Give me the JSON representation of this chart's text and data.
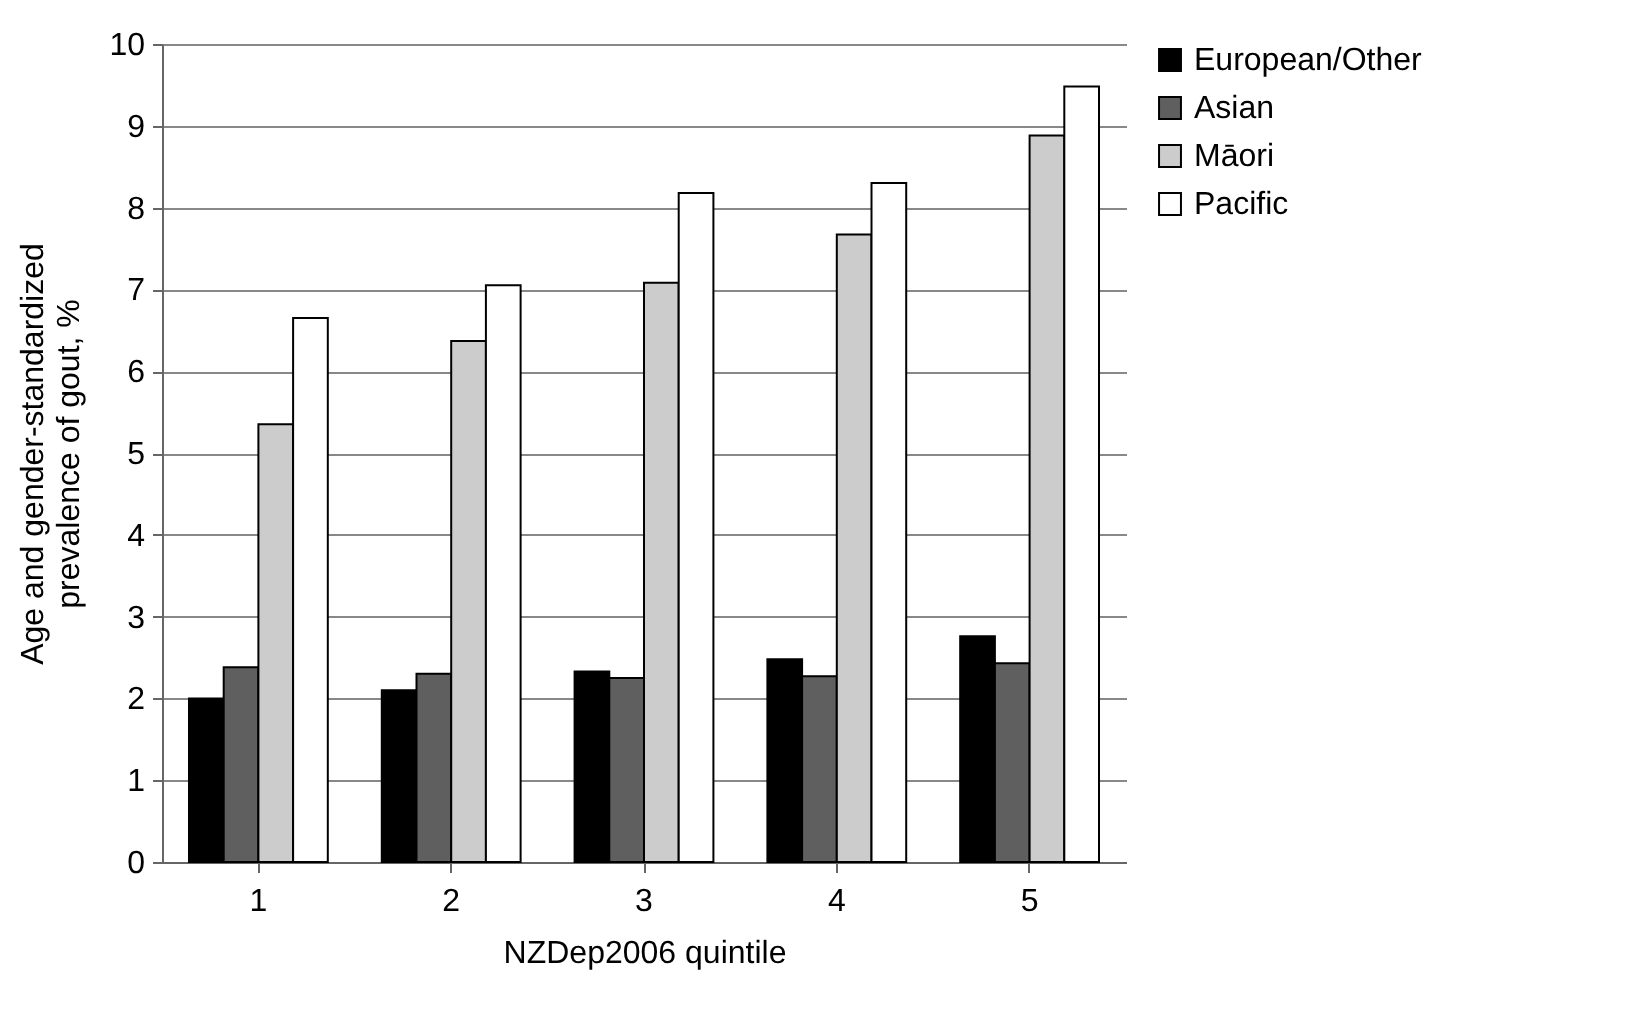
{
  "chart_data": {
    "type": "bar",
    "xlabel": "NZDep2006 quintile",
    "ylabel": "Age and gender-standardized prevalence of gout, %",
    "categories": [
      "1",
      "2",
      "3",
      "4",
      "5"
    ],
    "series": [
      {
        "name": "European/Other",
        "color": "#000000",
        "values": [
          2.0,
          2.1,
          2.33,
          2.48,
          2.76
        ]
      },
      {
        "name": "Asian",
        "color": "#5f5f5f",
        "values": [
          2.38,
          2.3,
          2.25,
          2.27,
          2.43
        ]
      },
      {
        "name": "Māori",
        "color": "#cccccc",
        "values": [
          5.35,
          6.37,
          7.08,
          7.67,
          8.88
        ]
      },
      {
        "name": "Pacific",
        "color": "#ffffff",
        "values": [
          6.65,
          7.05,
          8.18,
          8.3,
          9.48
        ]
      }
    ],
    "ylim": [
      0,
      10
    ],
    "yticks": [
      0,
      1,
      2,
      3,
      4,
      5,
      6,
      7,
      8,
      9,
      10
    ],
    "grid": "y",
    "legend": "right"
  }
}
